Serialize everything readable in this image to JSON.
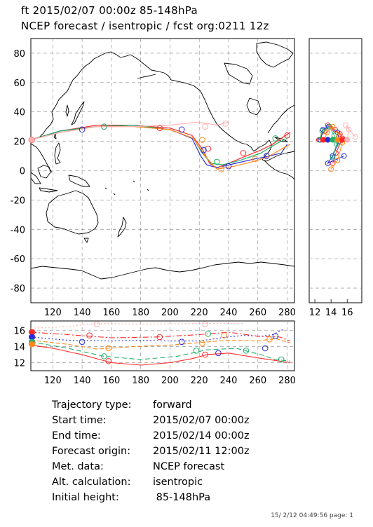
{
  "header": {
    "line1": "ft 2015/02/07 00:00z  85-148hPa",
    "line2": "NCEP forecast / isentropic / fcst org:0211 12z"
  },
  "chart_data": [
    {
      "type": "line",
      "panel": "map",
      "xticks": [
        "120",
        "140",
        "160",
        "180",
        "200",
        "220",
        "240",
        "260",
        "280"
      ],
      "yticks": [
        "80",
        "60",
        "40",
        "20",
        "0",
        "-20",
        "-40",
        "-60",
        "-80"
      ],
      "xlim": [
        105,
        285
      ],
      "ylim": [
        -90,
        90
      ],
      "series": [
        {
          "color": "#ff2a2a",
          "points": [
            [
              105,
              21
            ],
            [
              125,
              27
            ],
            [
              150,
              31
            ],
            [
              175,
              31
            ],
            [
              200,
              29
            ],
            [
              215,
              24
            ],
            [
              222,
              15
            ],
            [
              227,
              5
            ],
            [
              232,
              2
            ],
            [
              240,
              5
            ],
            [
              252,
              10
            ],
            [
              262,
              14
            ],
            [
              270,
              18
            ],
            [
              282,
              26
            ]
          ]
        },
        {
          "color": "#2b2bd8",
          "points": [
            [
              105,
              21
            ],
            [
              125,
              27
            ],
            [
              150,
              30
            ],
            [
              175,
              31
            ],
            [
              200,
              28
            ],
            [
              215,
              22
            ],
            [
              221,
              10
            ],
            [
              225,
              4
            ],
            [
              232,
              2
            ],
            [
              245,
              5
            ],
            [
              258,
              8
            ],
            [
              268,
              10
            ],
            [
              276,
              12
            ],
            [
              280,
              18
            ]
          ]
        },
        {
          "color": "#22b06a",
          "points": [
            [
              105,
              21
            ],
            [
              125,
              27
            ],
            [
              150,
              30
            ],
            [
              175,
              31
            ],
            [
              200,
              28
            ],
            [
              216,
              22
            ],
            [
              222,
              12
            ],
            [
              228,
              5
            ],
            [
              236,
              4
            ],
            [
              248,
              7
            ],
            [
              262,
              12
            ],
            [
              272,
              18
            ],
            [
              280,
              22
            ]
          ]
        },
        {
          "color": "#ff8a1a",
          "points": [
            [
              105,
              21
            ],
            [
              125,
              26
            ],
            [
              150,
              30
            ],
            [
              175,
              30
            ],
            [
              200,
              28
            ],
            [
              216,
              22
            ],
            [
              224,
              10
            ],
            [
              232,
              1
            ],
            [
              244,
              3
            ],
            [
              256,
              6
            ],
            [
              266,
              9
            ],
            [
              275,
              14
            ],
            [
              282,
              18
            ]
          ]
        },
        {
          "color": "#ffb3b3",
          "points": [
            [
              105,
              21
            ],
            [
              125,
              26
            ],
            [
              150,
              30
            ],
            [
              175,
              30
            ],
            [
              200,
              31
            ],
            [
              218,
              33
            ],
            [
              226,
              32
            ],
            [
              232,
              31
            ],
            [
              240,
              33
            ]
          ]
        }
      ],
      "markers": [
        {
          "x": 106,
          "y": 21,
          "color": "#ffb3b3"
        },
        {
          "x": 140,
          "y": 28,
          "color": "#2b2bd8"
        },
        {
          "x": 155,
          "y": 30,
          "color": "#22b06a"
        },
        {
          "x": 193,
          "y": 29,
          "color": "#ff2a2a"
        },
        {
          "x": 208,
          "y": 28,
          "color": "#2b2bd8"
        },
        {
          "x": 222,
          "y": 21,
          "color": "#ff8a1a"
        },
        {
          "x": 226,
          "y": 15,
          "color": "#ff2a2a"
        },
        {
          "x": 223,
          "y": 14,
          "color": "#2b2bd8"
        },
        {
          "x": 232,
          "y": 6,
          "color": "#22b06a"
        },
        {
          "x": 235,
          "y": 1,
          "color": "#ff8a1a"
        },
        {
          "x": 240,
          "y": 3,
          "color": "#2b2bd8"
        },
        {
          "x": 250,
          "y": 12,
          "color": "#ff2a2a"
        },
        {
          "x": 258,
          "y": 8,
          "color": "#ff8a1a"
        },
        {
          "x": 266,
          "y": 10,
          "color": "#2b2bd8"
        },
        {
          "x": 272,
          "y": 22,
          "color": "#22b06a"
        },
        {
          "x": 280,
          "y": 24,
          "color": "#ff2a2a"
        },
        {
          "x": 224,
          "y": 30,
          "color": "#ffb3b3"
        },
        {
          "x": 238,
          "y": 32,
          "color": "#ffb3b3"
        }
      ]
    },
    {
      "type": "scatter",
      "panel": "side",
      "xticks": [
        "12",
        "14",
        "16"
      ],
      "xlim": [
        11.3,
        17.8
      ],
      "ylim": [
        -90,
        90
      ],
      "series": [
        {
          "color": "#ff2a2a",
          "points": [
            [
              12.5,
              21
            ],
            [
              13.2,
              27
            ],
            [
              13.6,
              31
            ],
            [
              14.5,
              28
            ],
            [
              15.1,
              25
            ],
            [
              15.4,
              22
            ],
            [
              14.6,
              12
            ],
            [
              14.2,
              5
            ]
          ]
        },
        {
          "color": "#2b2bd8",
          "points": [
            [
              12.7,
              21
            ],
            [
              13.0,
              28
            ],
            [
              13.7,
              30
            ],
            [
              14.8,
              26
            ],
            [
              15.0,
              20
            ],
            [
              14.2,
              10
            ],
            [
              13.6,
              5
            ],
            [
              15.6,
              10
            ]
          ]
        },
        {
          "color": "#22b06a",
          "points": [
            [
              12.6,
              21
            ],
            [
              12.9,
              27
            ],
            [
              13.8,
              30
            ],
            [
              14.4,
              24
            ],
            [
              14.7,
              18
            ],
            [
              14.2,
              9
            ]
          ]
        },
        {
          "color": "#ff8a1a",
          "points": [
            [
              13.2,
              21
            ],
            [
              13.5,
              26
            ],
            [
              14.2,
              30
            ],
            [
              15.0,
              24
            ],
            [
              15.4,
              19
            ],
            [
              14.8,
              7
            ],
            [
              14.0,
              1
            ]
          ]
        },
        {
          "color": "#ffb3b3",
          "points": [
            [
              16.0,
              21
            ],
            [
              16.2,
              28
            ],
            [
              15.8,
              31
            ],
            [
              17.0,
              23
            ]
          ]
        }
      ]
    },
    {
      "type": "line",
      "panel": "height",
      "xticks": [
        "120",
        "140",
        "160",
        "180",
        "200",
        "220",
        "240",
        "260",
        "280"
      ],
      "yticks": [
        "16",
        "14",
        "12"
      ],
      "xlim": [
        105,
        285
      ],
      "ylim": [
        11,
        17.2
      ],
      "series": [
        {
          "color": "#ff2a2a",
          "dash": "",
          "points": [
            [
              105,
              14.2
            ],
            [
              120,
              13.8
            ],
            [
              140,
              13.0
            ],
            [
              160,
              12.0
            ],
            [
              180,
              11.7
            ],
            [
              200,
              12.0
            ],
            [
              215,
              12.5
            ],
            [
              225,
              13.0
            ],
            [
              240,
              13.2
            ],
            [
              260,
              12.6
            ],
            [
              275,
              12.2
            ],
            [
              282,
              12.0
            ]
          ]
        },
        {
          "color": "#2b2bd8",
          "dash": "2,3",
          "points": [
            [
              105,
              15.2
            ],
            [
              130,
              14.8
            ],
            [
              160,
              14.7
            ],
            [
              180,
              14.8
            ],
            [
              200,
              14.7
            ],
            [
              220,
              14.7
            ],
            [
              235,
              15.1
            ],
            [
              250,
              15.4
            ],
            [
              262,
              15.3
            ],
            [
              270,
              15.5
            ],
            [
              278,
              16.2
            ]
          ]
        },
        {
          "color": "#22b06a",
          "dash": "7,4",
          "points": [
            [
              105,
              14.6
            ],
            [
              130,
              13.8
            ],
            [
              155,
              12.8
            ],
            [
              180,
              12.4
            ],
            [
              205,
              12.8
            ],
            [
              225,
              13.6
            ],
            [
              245,
              13.8
            ],
            [
              262,
              13.0
            ],
            [
              272,
              12.4
            ],
            [
              282,
              12.2
            ]
          ]
        },
        {
          "color": "#ff8a1a",
          "dash": "6,3",
          "points": [
            [
              105,
              14.8
            ],
            [
              130,
              14.3
            ],
            [
              150,
              13.7
            ],
            [
              175,
              14.0
            ],
            [
              200,
              14.2
            ],
            [
              220,
              14.5
            ],
            [
              240,
              14.8
            ],
            [
              260,
              14.7
            ],
            [
              272,
              15.0
            ],
            [
              282,
              14.5
            ]
          ]
        },
        {
          "color": "#ff2a2a",
          "dash": "8,3,2,3",
          "points": [
            [
              105,
              15.8
            ],
            [
              130,
              15.5
            ],
            [
              160,
              15.1
            ],
            [
              190,
              15.2
            ],
            [
              220,
              15.5
            ],
            [
              240,
              15.8
            ],
            [
              260,
              15.3
            ],
            [
              275,
              15.2
            ],
            [
              282,
              14.7
            ]
          ]
        },
        {
          "color": "#ffb3b3",
          "dash": "2,3",
          "points": [
            [
              105,
              16.3
            ],
            [
              130,
              16.5
            ],
            [
              150,
              16.9
            ],
            [
              180,
              16.8
            ],
            [
              220,
              16.9
            ],
            [
              250,
              16.9
            ]
          ]
        }
      ],
      "markers": [
        {
          "x": 106,
          "y": 15.8,
          "color": "#ff2a2a"
        },
        {
          "x": 106,
          "y": 15.2,
          "color": "#2b2bd8"
        },
        {
          "x": 106,
          "y": 14.6,
          "color": "#22b06a"
        },
        {
          "x": 106,
          "y": 14.4,
          "color": "#ff8a1a"
        },
        {
          "x": 145,
          "y": 15.4,
          "color": "#ff2a2a"
        },
        {
          "x": 140,
          "y": 14.6,
          "color": "#2b2bd8"
        },
        {
          "x": 155,
          "y": 12.8,
          "color": "#22b06a"
        },
        {
          "x": 158,
          "y": 12.2,
          "color": "#ff2a2a"
        },
        {
          "x": 158,
          "y": 13.8,
          "color": "#ff8a1a"
        },
        {
          "x": 193,
          "y": 15.2,
          "color": "#ff2a2a"
        },
        {
          "x": 208,
          "y": 14.6,
          "color": "#2b2bd8"
        },
        {
          "x": 218,
          "y": 13.5,
          "color": "#22b06a"
        },
        {
          "x": 222,
          "y": 14.4,
          "color": "#ff8a1a"
        },
        {
          "x": 224,
          "y": 13.0,
          "color": "#ff2a2a"
        },
        {
          "x": 226,
          "y": 15.6,
          "color": "#22b06a"
        },
        {
          "x": 233,
          "y": 13.2,
          "color": "#2b2bd8"
        },
        {
          "x": 237,
          "y": 15.4,
          "color": "#ff8a1a"
        },
        {
          "x": 252,
          "y": 13.5,
          "color": "#22b06a"
        },
        {
          "x": 265,
          "y": 13.8,
          "color": "#2b2bd8"
        },
        {
          "x": 268,
          "y": 14.9,
          "color": "#ff8a1a"
        },
        {
          "x": 272,
          "y": 15.3,
          "color": "#2b2bd8"
        },
        {
          "x": 276,
          "y": 12.4,
          "color": "#22b06a"
        },
        {
          "x": 150,
          "y": 16.8,
          "color": "#ffb3b3"
        },
        {
          "x": 224,
          "y": 16.8,
          "color": "#ffb3b3"
        }
      ]
    }
  ],
  "info": {
    "rows": [
      {
        "label": "Trajectory type:",
        "value": "forward"
      },
      {
        "label": "Start time:",
        "value": "2015/02/07 00:00z"
      },
      {
        "label": "End time:",
        "value": "2015/02/14 00:00z"
      },
      {
        "label": "Forecast origin:",
        "value": "2015/02/11 12:00z"
      },
      {
        "label": "Met. data:",
        "value": "NCEP forecast"
      },
      {
        "label": "Alt. calculation:",
        "value": "isentropic"
      },
      {
        "label": "Initial height:",
        "value": " 85-148hPa"
      }
    ]
  },
  "footer": {
    "text": "15/ 2/12 04:49:56 page: 1"
  }
}
